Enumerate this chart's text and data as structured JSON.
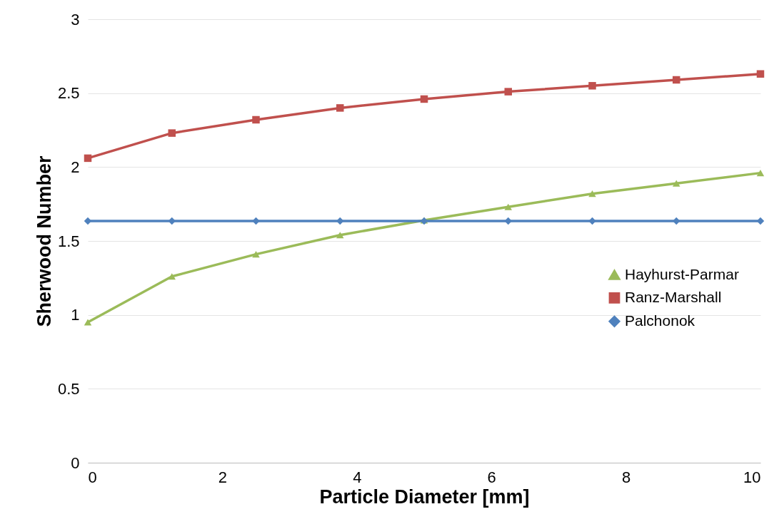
{
  "chart_data": {
    "type": "line",
    "xlabel": "Particle Diameter [mm]",
    "ylabel": "Sherwood Number",
    "x": [
      0,
      1.25,
      2.5,
      3.75,
      5,
      6.25,
      7.5,
      8.75,
      10
    ],
    "series": [
      {
        "name": "Hayhurst-Parmar",
        "color": "#9bbb59",
        "marker": "triangle",
        "values": [
          0.95,
          1.26,
          1.41,
          1.54,
          1.64,
          1.73,
          1.82,
          1.89,
          1.96
        ]
      },
      {
        "name": "Ranz-Marshall",
        "color": "#c0504d",
        "marker": "square",
        "values": [
          2.06,
          2.23,
          2.32,
          2.4,
          2.46,
          2.51,
          2.55,
          2.59,
          2.63
        ]
      },
      {
        "name": "Palchonok",
        "color": "#4f81bd",
        "marker": "diamond",
        "values": [
          1.635,
          1.635,
          1.635,
          1.635,
          1.635,
          1.635,
          1.635,
          1.635,
          1.635
        ]
      }
    ],
    "xlim": [
      0,
      10
    ],
    "xticks": [
      0,
      2,
      4,
      6,
      8,
      10
    ],
    "ylim": [
      0,
      3
    ],
    "yticks": [
      0,
      0.5,
      1,
      1.5,
      2,
      2.5,
      3
    ],
    "grid": "y",
    "legend": "right"
  }
}
